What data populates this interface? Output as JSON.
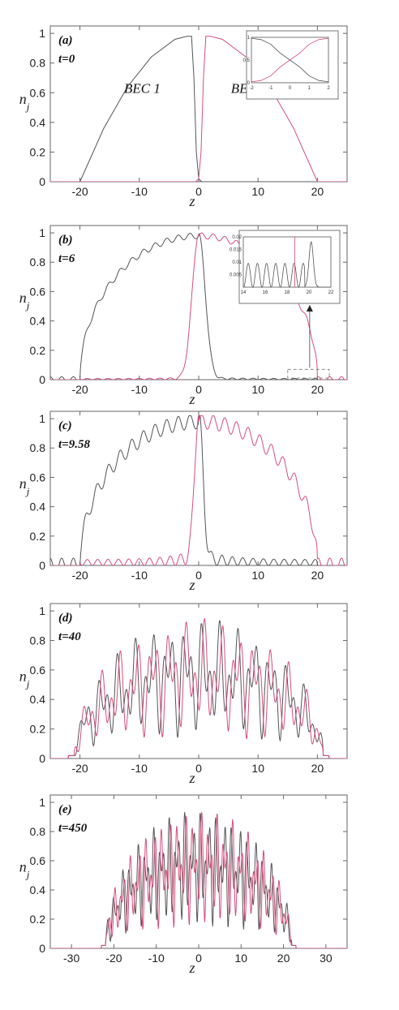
{
  "figure": {
    "panel_count": 5
  },
  "chart_data": [
    {
      "type": "line",
      "panel": "(a)",
      "time_label": "t=0",
      "xlabel": "z",
      "ylabel": "n_j",
      "xlim": [
        -25,
        25
      ],
      "ylim": [
        0,
        1.05
      ],
      "xticks": [
        -20,
        -10,
        0,
        10,
        20
      ],
      "yticks": [
        0,
        0.2,
        0.4,
        0.6,
        0.8,
        1
      ],
      "annotations": [
        "BEC 1",
        "BEC 2"
      ],
      "series": [
        {
          "color": "#555555",
          "values": [
            [
              -25,
              0
            ],
            [
              -20,
              0
            ],
            [
              -16,
              0.36
            ],
            [
              -12,
              0.64
            ],
            [
              -8,
              0.84
            ],
            [
              -4,
              0.96
            ],
            [
              -2,
              0.98
            ],
            [
              -1.2,
              0.98
            ],
            [
              -0.8,
              0.7
            ],
            [
              -0.4,
              0.2
            ],
            [
              0,
              0.02
            ],
            [
              0.5,
              0
            ],
            [
              25,
              0
            ]
          ]
        },
        {
          "color": "#d64f7a",
          "values": [
            [
              -25,
              0
            ],
            [
              -0.5,
              0
            ],
            [
              0,
              0.02
            ],
            [
              0.4,
              0.2
            ],
            [
              0.8,
              0.7
            ],
            [
              1.2,
              0.98
            ],
            [
              2,
              0.98
            ],
            [
              4,
              0.96
            ],
            [
              8,
              0.84
            ],
            [
              12,
              0.64
            ],
            [
              16,
              0.36
            ],
            [
              20,
              0
            ],
            [
              25,
              0
            ]
          ]
        }
      ],
      "inset": {
        "xlim": [
          -2,
          2
        ],
        "ylim": [
          0,
          1
        ],
        "xticks": [
          -2,
          -1,
          0,
          1,
          2
        ],
        "yticks": [
          0,
          0.5,
          1
        ],
        "series": [
          {
            "color": "#555555",
            "values": [
              [
                -2,
                0.98
              ],
              [
                -1.5,
                0.95
              ],
              [
                -1,
                0.85
              ],
              [
                -0.5,
                0.65
              ],
              [
                0,
                0.5
              ],
              [
                0.5,
                0.35
              ],
              [
                1,
                0.15
              ],
              [
                1.5,
                0.05
              ],
              [
                2,
                0.02
              ]
            ]
          },
          {
            "color": "#d64f7a",
            "values": [
              [
                -2,
                0.02
              ],
              [
                -1.5,
                0.05
              ],
              [
                -1,
                0.15
              ],
              [
                -0.5,
                0.35
              ],
              [
                0,
                0.5
              ],
              [
                0.5,
                0.65
              ],
              [
                1,
                0.85
              ],
              [
                1.5,
                0.95
              ],
              [
                2,
                0.98
              ]
            ]
          }
        ]
      }
    },
    {
      "type": "line",
      "panel": "(b)",
      "time_label": "t=6",
      "xlabel": "z",
      "ylabel": "n_j",
      "xlim": [
        -25,
        25
      ],
      "ylim": [
        0,
        1.05
      ],
      "xticks": [
        -20,
        -10,
        0,
        10,
        20
      ],
      "yticks": [
        0,
        0.2,
        0.4,
        0.6,
        0.8,
        1
      ],
      "series": [
        {
          "color": "#555555",
          "envelope": "BEC1",
          "ripple": 0.02
        },
        {
          "color": "#d64f7a",
          "envelope": "BEC2",
          "ripple": 0.02
        }
      ],
      "inset": {
        "xlim": [
          14,
          22
        ],
        "ylim": [
          0,
          0.02
        ],
        "xticks": [
          14,
          16,
          18,
          20,
          22
        ],
        "yticks": [
          0.005,
          0.01,
          0.015,
          0.02
        ],
        "oscillating": true
      }
    },
    {
      "type": "line",
      "panel": "(c)",
      "time_label": "t=9.58",
      "xlabel": "z",
      "ylabel": "n_j",
      "xlim": [
        -25,
        25
      ],
      "ylim": [
        0,
        1.05
      ],
      "xticks": [
        -20,
        -10,
        0,
        10,
        20
      ],
      "yticks": [
        0,
        0.2,
        0.4,
        0.6,
        0.8,
        1
      ],
      "series": [
        {
          "color": "#555555",
          "envelope": "BEC1",
          "ripple": 0.05
        },
        {
          "color": "#d64f7a",
          "envelope": "BEC2",
          "ripple": 0.05
        }
      ]
    },
    {
      "type": "line",
      "panel": "(d)",
      "time_label": "t=40",
      "xlabel": "z",
      "ylabel": "n_j",
      "xlim": [
        -25,
        25
      ],
      "ylim": [
        0,
        1.05
      ],
      "xticks": [
        -20,
        -10,
        0,
        10,
        20
      ],
      "yticks": [
        0,
        0.2,
        0.4,
        0.6,
        0.8,
        1
      ],
      "series": [
        {
          "color": "#555555",
          "mixed": true
        },
        {
          "color": "#d64f7a",
          "mixed": true
        }
      ]
    },
    {
      "type": "line",
      "panel": "(e)",
      "time_label": "t=450",
      "xlabel": "z",
      "ylabel": "n_j",
      "xlim": [
        -35,
        35
      ],
      "ylim": [
        0,
        1.05
      ],
      "xticks": [
        -30,
        -20,
        -10,
        0,
        10,
        20,
        30
      ],
      "yticks": [
        0,
        0.2,
        0.4,
        0.6,
        0.8,
        1
      ],
      "series": [
        {
          "color": "#555555",
          "mixed": true
        },
        {
          "color": "#d64f7a",
          "mixed": true
        }
      ]
    }
  ]
}
